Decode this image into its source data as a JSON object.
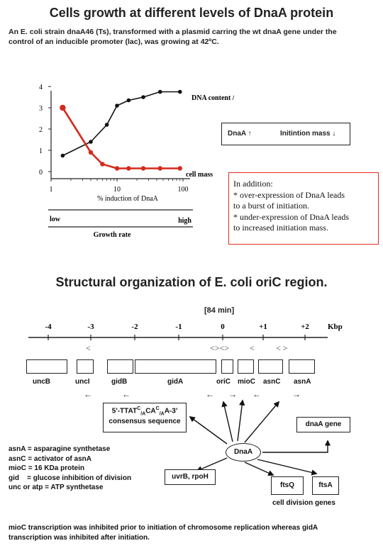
{
  "section1": {
    "title": "Cells growth at different levels of DnaA protein",
    "intro_line1": "An E. coli strain dnaA46 (Ts), transformed with a plasmid carring the wt dnaA gene under the",
    "intro_line2": "control of an inducible promoter (lac), was growing at 42ºC."
  },
  "chart_data": {
    "type": "line",
    "xscale": "log",
    "xlim": [
      1,
      100
    ],
    "ylim": [
      0,
      4
    ],
    "x_ticks": [
      "1",
      "10",
      "100"
    ],
    "y_ticks": [
      "0",
      "1",
      "2",
      "3",
      "4"
    ],
    "xlabel": "% induction of DnaA",
    "series": [
      {
        "name": "DNA content / cell",
        "color": "#111111",
        "x": [
          1.5,
          4,
          7,
          10,
          15,
          25,
          45,
          90
        ],
        "y": [
          0.75,
          1.4,
          2.2,
          3.1,
          3.35,
          3.5,
          3.75,
          3.75
        ]
      },
      {
        "name": "cell mass",
        "color": "#d42a1c",
        "x": [
          1.5,
          4,
          6,
          10,
          15,
          25,
          45,
          90
        ],
        "y": [
          3.0,
          0.9,
          0.35,
          0.15,
          0.15,
          0.15,
          0.15,
          0.15
        ]
      }
    ],
    "box_text": {
      "left": "DnaA ↑",
      "right": "Initintion mass ↓"
    },
    "growth_axis": {
      "low": "low",
      "high": "high",
      "label": "Growth rate"
    }
  },
  "callout": {
    "line1": "In addition:",
    "line2": "* over-expression of DnaA leads",
    "line3": "to a burst of initiation.",
    "line4": "* under-expression of DnaA leads",
    "line5": "to increased initiation mass."
  },
  "section2": {
    "title": "Structural organization of E. coli oriC region.",
    "map_position": "[84 min]",
    "unit": "Kbp",
    "scale": [
      "-4",
      "-3",
      "-2",
      "-1",
      "0",
      "+1",
      "+2"
    ],
    "genes": [
      "uncB",
      "uncI",
      "gidB",
      "gidA",
      "oriC",
      "mioC",
      "asnC",
      "asnA"
    ],
    "consensus_line1": "5'-TTAT",
    "consensus_sup1": "C",
    "consensus_sub1": "/A",
    "consensus_mid": "CA",
    "consensus_sup2": "C",
    "consensus_sub2": "/A",
    "consensus_end": "A-3'",
    "consensus_line2": "consensus sequence",
    "hub": "DnaA",
    "targets": {
      "dnaa_gene": "dnaA gene",
      "uvrb": "uvrB, rpoH",
      "ftsq": "ftsQ",
      "ftsa": "ftsA",
      "cell_division": "cell division genes"
    },
    "legend": [
      "asnA = asparagine synthetase",
      "asnC = activator of asnA",
      "mioC = 16 KDa protein",
      "gid    = glucose inhibition of division",
      "unc or atp = ATP synthetase"
    ],
    "footer_line1": "mioC transcription was inhibited prior to initiation of chromosome replication whereas gidA",
    "footer_line2": "transcription was inhibited after initiation."
  }
}
